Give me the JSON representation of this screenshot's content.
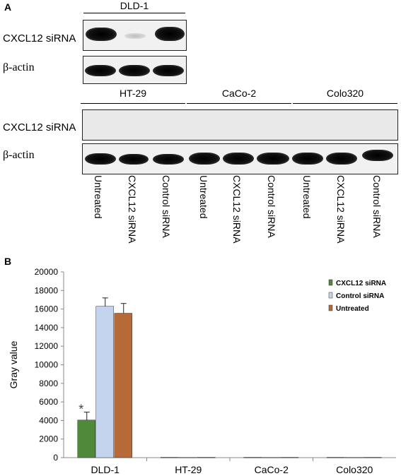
{
  "panel_a": {
    "letter": "A",
    "dld1_header": "DLD-1",
    "group_headers": [
      "HT-29",
      "CaCo-2",
      "Colo320"
    ],
    "row_label_sirna": "CXCL12 siRNA",
    "row_label_actin": "β-actin",
    "row_label_sirna_lower": "CXCL12 siRNA",
    "row_label_actin_lower": "β-actin",
    "lane_labels": [
      "Untreated",
      "CXCL12 siRNA",
      "Control siRNA",
      "Untreated",
      "CXCL12 siRNA",
      "Control siRNA",
      "Untreated",
      "CXCL12 siRNA",
      "Control siRNA"
    ]
  },
  "panel_b": {
    "letter": "B",
    "significance_marker": "*"
  },
  "chart_data": {
    "type": "bar",
    "title": "",
    "xlabel": "",
    "ylabel": "Gray value",
    "ylim": [
      0,
      20000
    ],
    "yticks": [
      0,
      2000,
      4000,
      6000,
      8000,
      10000,
      12000,
      14000,
      16000,
      18000,
      20000
    ],
    "categories": [
      "DLD-1",
      "HT-29",
      "CaCo-2",
      "Colo320"
    ],
    "series": [
      {
        "name": "CXCL12 siRNA",
        "color": "#4e8a3a",
        "values": [
          4050,
          40,
          40,
          40
        ],
        "errors": [
          850,
          0,
          0,
          0
        ]
      },
      {
        "name": "Control siRNA",
        "color": "#c4d4ee",
        "values": [
          16300,
          40,
          40,
          40
        ],
        "errors": [
          900,
          0,
          0,
          0
        ]
      },
      {
        "name": "Untreated",
        "color": "#b56a38",
        "values": [
          15550,
          40,
          40,
          40
        ],
        "errors": [
          1050,
          0,
          0,
          0
        ]
      }
    ],
    "legend_position": "top-right",
    "grid": false
  }
}
